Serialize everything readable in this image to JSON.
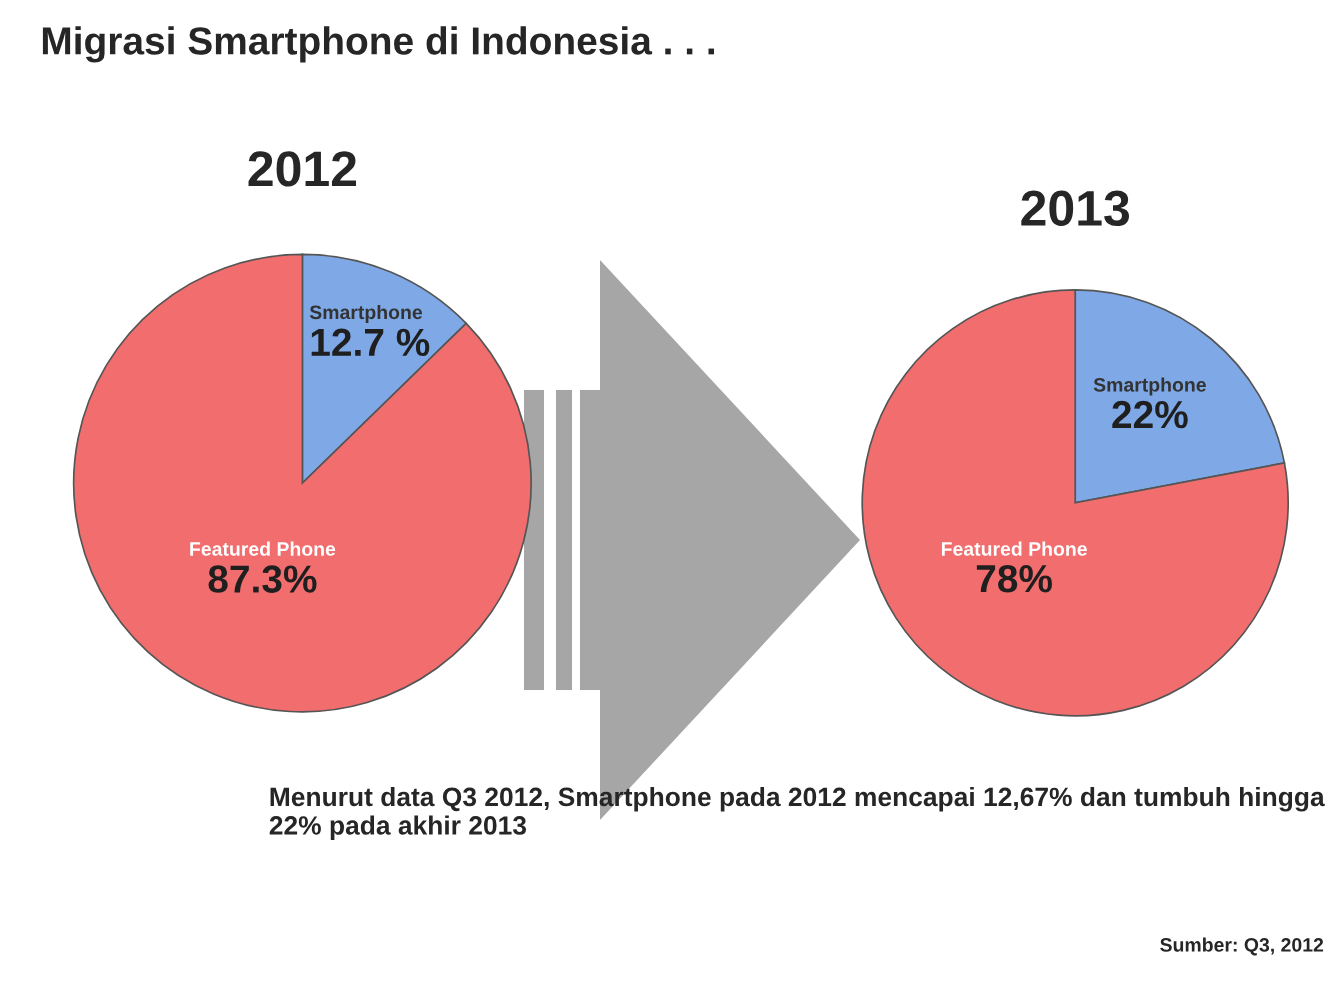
{
  "chart_data": [
    {
      "type": "pie",
      "title": "2012",
      "categories": [
        "Smartphone",
        "Featured Phone"
      ],
      "values": [
        12.7,
        87.3
      ],
      "value_labels": [
        "12.7 %",
        "87.3%"
      ],
      "colors": [
        "#7ea9e6",
        "#f26e6e"
      ],
      "annotations": [
        "Migrasi Smartphone di Indonesia . . ."
      ]
    },
    {
      "type": "pie",
      "title": "2013",
      "categories": [
        "Smartphone",
        "Featured Phone"
      ],
      "values": [
        22,
        78
      ],
      "value_labels": [
        "22%",
        "78%"
      ],
      "colors": [
        "#7ea9e6",
        "#f26e6e"
      ],
      "annotations": [
        "Menurut data Q3 2012, Smartphone pada 2012 mencapai 12,67% dan tumbuh hingga 22% pada akhir 2013",
        "Sumber: Q3, 2012"
      ]
    }
  ]
}
